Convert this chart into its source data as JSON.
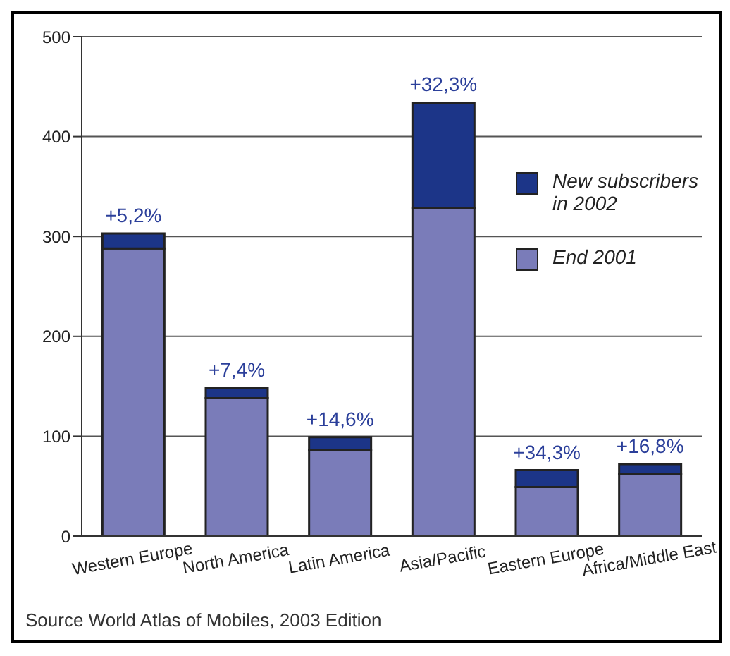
{
  "chart_data": {
    "type": "bar",
    "stacked": true,
    "categories": [
      "Western Europe",
      "North America",
      "Latin America",
      "Asia/Pacific",
      "Eastern Europe",
      "Africa/Middle East"
    ],
    "series": [
      {
        "name": "End 2001",
        "color": "#7a7cb9",
        "values": [
          288,
          138,
          86,
          328,
          49,
          62
        ]
      },
      {
        "name": "New subscribers in 2002",
        "color": "#1c3588",
        "values": [
          15,
          10,
          13,
          106,
          17,
          10
        ]
      }
    ],
    "ylim": [
      0,
      500
    ],
    "yticks": [
      0,
      100,
      200,
      300,
      400,
      500
    ],
    "grid": "y",
    "legend": "top right",
    "annotations": [
      {
        "text": "+5,2%",
        "x": "Western Europe",
        "y": 303
      },
      {
        "text": "+7,4%",
        "x": "North America",
        "y": 148
      },
      {
        "text": "+14,6%",
        "x": "Latin America",
        "y": 99
      },
      {
        "text": "+32,3%",
        "x": "Asia/Pacific",
        "y": 434
      },
      {
        "text": "+34,3%",
        "x": "Eastern Europe",
        "y": 66
      },
      {
        "text": "+16,8%",
        "x": "Africa/Middle East",
        "y": 72
      },
      "Source World Atlas of Mobiles, 2003 Edition"
    ]
  }
}
